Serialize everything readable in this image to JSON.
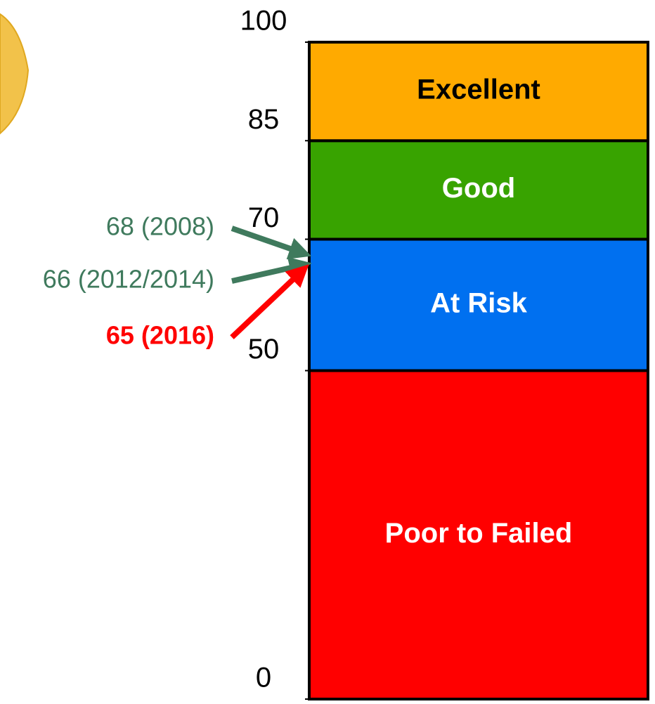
{
  "chart_data": {
    "type": "stacked-bar",
    "ylim": [
      0,
      100
    ],
    "yticks": [
      0,
      50,
      70,
      85,
      100
    ],
    "series": [
      {
        "name": "Poor to Failed",
        "color": "#ff0000",
        "values": [
          50
        ]
      },
      {
        "name": "At Risk",
        "color": "#0070f0",
        "values": [
          20
        ]
      },
      {
        "name": "Good",
        "color": "#38a300",
        "values": [
          15
        ]
      },
      {
        "name": "Excellent",
        "color": "#ffaa00",
        "values": [
          15
        ]
      }
    ],
    "annotations": [
      {
        "text": "68 (2008)",
        "value": 68,
        "color": "#3f7a5d"
      },
      {
        "text": "66 (2012/2014)",
        "value": 66,
        "color": "#3f7a5d"
      },
      {
        "text": "65 (2016)",
        "value": 65,
        "color": "#ff0000"
      }
    ]
  }
}
